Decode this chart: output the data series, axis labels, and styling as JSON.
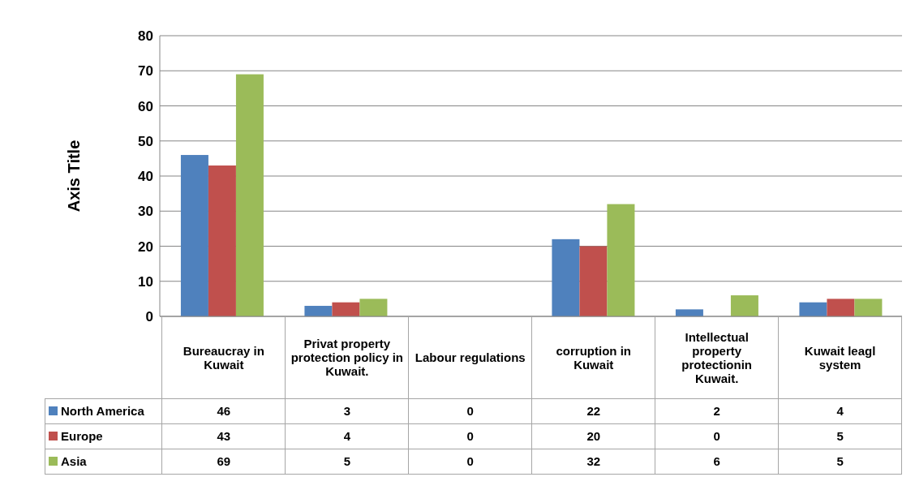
{
  "chart_data": {
    "type": "bar",
    "ylabel": "Axis Title",
    "categories": [
      "Bureaucray in Kuwait",
      "Privat property protection policy in Kuwait.",
      "Labour regulations",
      "corruption in Kuwait",
      "Intellectual property protectionin Kuwait.",
      "Kuwait leagl system"
    ],
    "series": [
      {
        "name": "North America",
        "color": "#4f81bd",
        "values": [
          46,
          3,
          0,
          22,
          2,
          4
        ]
      },
      {
        "name": "Europe",
        "color": "#c0504d",
        "values": [
          43,
          4,
          0,
          20,
          0,
          5
        ]
      },
      {
        "name": "Asia",
        "color": "#9bbb59",
        "values": [
          69,
          5,
          0,
          32,
          6,
          5
        ]
      }
    ],
    "ylim": [
      0,
      80
    ],
    "yticks": [
      0,
      10,
      20,
      30,
      40,
      50,
      60,
      70,
      80
    ],
    "grid": "y",
    "legend": "bottom",
    "data_labels": true
  }
}
